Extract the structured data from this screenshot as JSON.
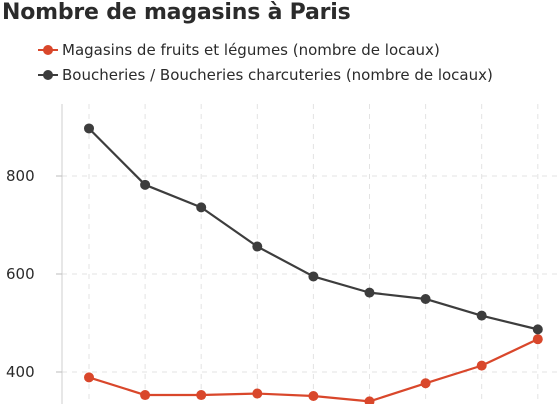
{
  "chart_data": {
    "type": "line",
    "title": "Nombre de magasins à Paris",
    "xlabel": "",
    "ylabel": "",
    "x": [
      0,
      1,
      2,
      3,
      4,
      5,
      6,
      7,
      8
    ],
    "yticks": [
      400,
      600,
      800
    ],
    "ylim": [
      330,
      935
    ],
    "grid": true,
    "legend_position": "top-left",
    "series": [
      {
        "name": "Magasins de fruits et légumes (nombre de locaux)",
        "color": "#d9472b",
        "values": [
          389,
          353,
          353,
          356,
          351,
          340,
          377,
          413,
          467
        ]
      },
      {
        "name": "Boucheries / Boucheries charcuteries (nombre de locaux)",
        "color": "#3d3d3d",
        "values": [
          897,
          782,
          736,
          656,
          595,
          562,
          549,
          515,
          487
        ]
      }
    ]
  }
}
